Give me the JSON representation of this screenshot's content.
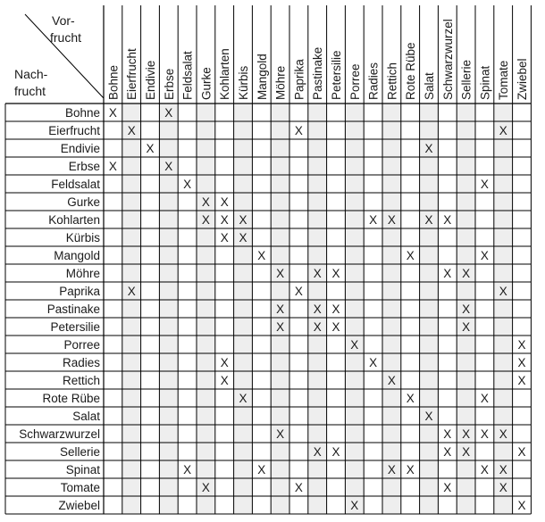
{
  "corner": {
    "top_line1": "Vor-",
    "top_line2": "frucht",
    "bottom_line1": "Nach-",
    "bottom_line2": "frucht"
  },
  "columns": [
    "Bohne",
    "Eierfrucht",
    "Endivie",
    "Erbse",
    "Feldsalat",
    "Gurke",
    "Kohlarten",
    "Kürbis",
    "Mangold",
    "Möhre",
    "Paprika",
    "Pastinake",
    "Petersilie",
    "Porree",
    "Radies",
    "Rettich",
    "Rote Rübe",
    "Salat",
    "Schwarzwurzel",
    "Sellerie",
    "Spinat",
    "Tomate",
    "Zwiebel"
  ],
  "rows": [
    {
      "label": "Bohne",
      "marks": [
        0,
        3
      ]
    },
    {
      "label": "Eierfrucht",
      "marks": [
        1,
        10,
        21
      ]
    },
    {
      "label": "Endivie",
      "marks": [
        2,
        17
      ]
    },
    {
      "label": "Erbse",
      "marks": [
        0,
        3
      ]
    },
    {
      "label": "Feldsalat",
      "marks": [
        4,
        20
      ]
    },
    {
      "label": "Gurke",
      "marks": [
        5,
        6
      ]
    },
    {
      "label": "Kohlarten",
      "marks": [
        5,
        6,
        7,
        14,
        15,
        17,
        18
      ]
    },
    {
      "label": "Kürbis",
      "marks": [
        6,
        7
      ]
    },
    {
      "label": "Mangold",
      "marks": [
        8,
        16,
        20
      ]
    },
    {
      "label": "Möhre",
      "marks": [
        9,
        11,
        12,
        18,
        19
      ]
    },
    {
      "label": "Paprika",
      "marks": [
        1,
        10,
        21
      ]
    },
    {
      "label": "Pastinake",
      "marks": [
        9,
        11,
        12,
        19
      ]
    },
    {
      "label": "Petersilie",
      "marks": [
        9,
        11,
        12,
        19
      ]
    },
    {
      "label": "Porree",
      "marks": [
        13,
        22
      ]
    },
    {
      "label": "Radies",
      "marks": [
        6,
        14,
        22
      ]
    },
    {
      "label": "Rettich",
      "marks": [
        6,
        15,
        22
      ]
    },
    {
      "label": "Rote Rübe",
      "marks": [
        7,
        16,
        20
      ]
    },
    {
      "label": "Salat",
      "marks": [
        17
      ]
    },
    {
      "label": "Schwarzwurzel",
      "marks": [
        9,
        18,
        19,
        20,
        21
      ]
    },
    {
      "label": "Sellerie",
      "marks": [
        11,
        12,
        18,
        19,
        22
      ]
    },
    {
      "label": "Spinat",
      "marks": [
        4,
        8,
        15,
        16,
        20,
        21
      ]
    },
    {
      "label": "Tomate",
      "marks": [
        5,
        10,
        18,
        21
      ]
    },
    {
      "label": "Zwiebel",
      "marks": [
        13,
        22
      ]
    }
  ],
  "mark_symbol": "X",
  "colors": {
    "grid": "#000000",
    "shade": "#eeeeee",
    "text": "#1a1a1a"
  }
}
